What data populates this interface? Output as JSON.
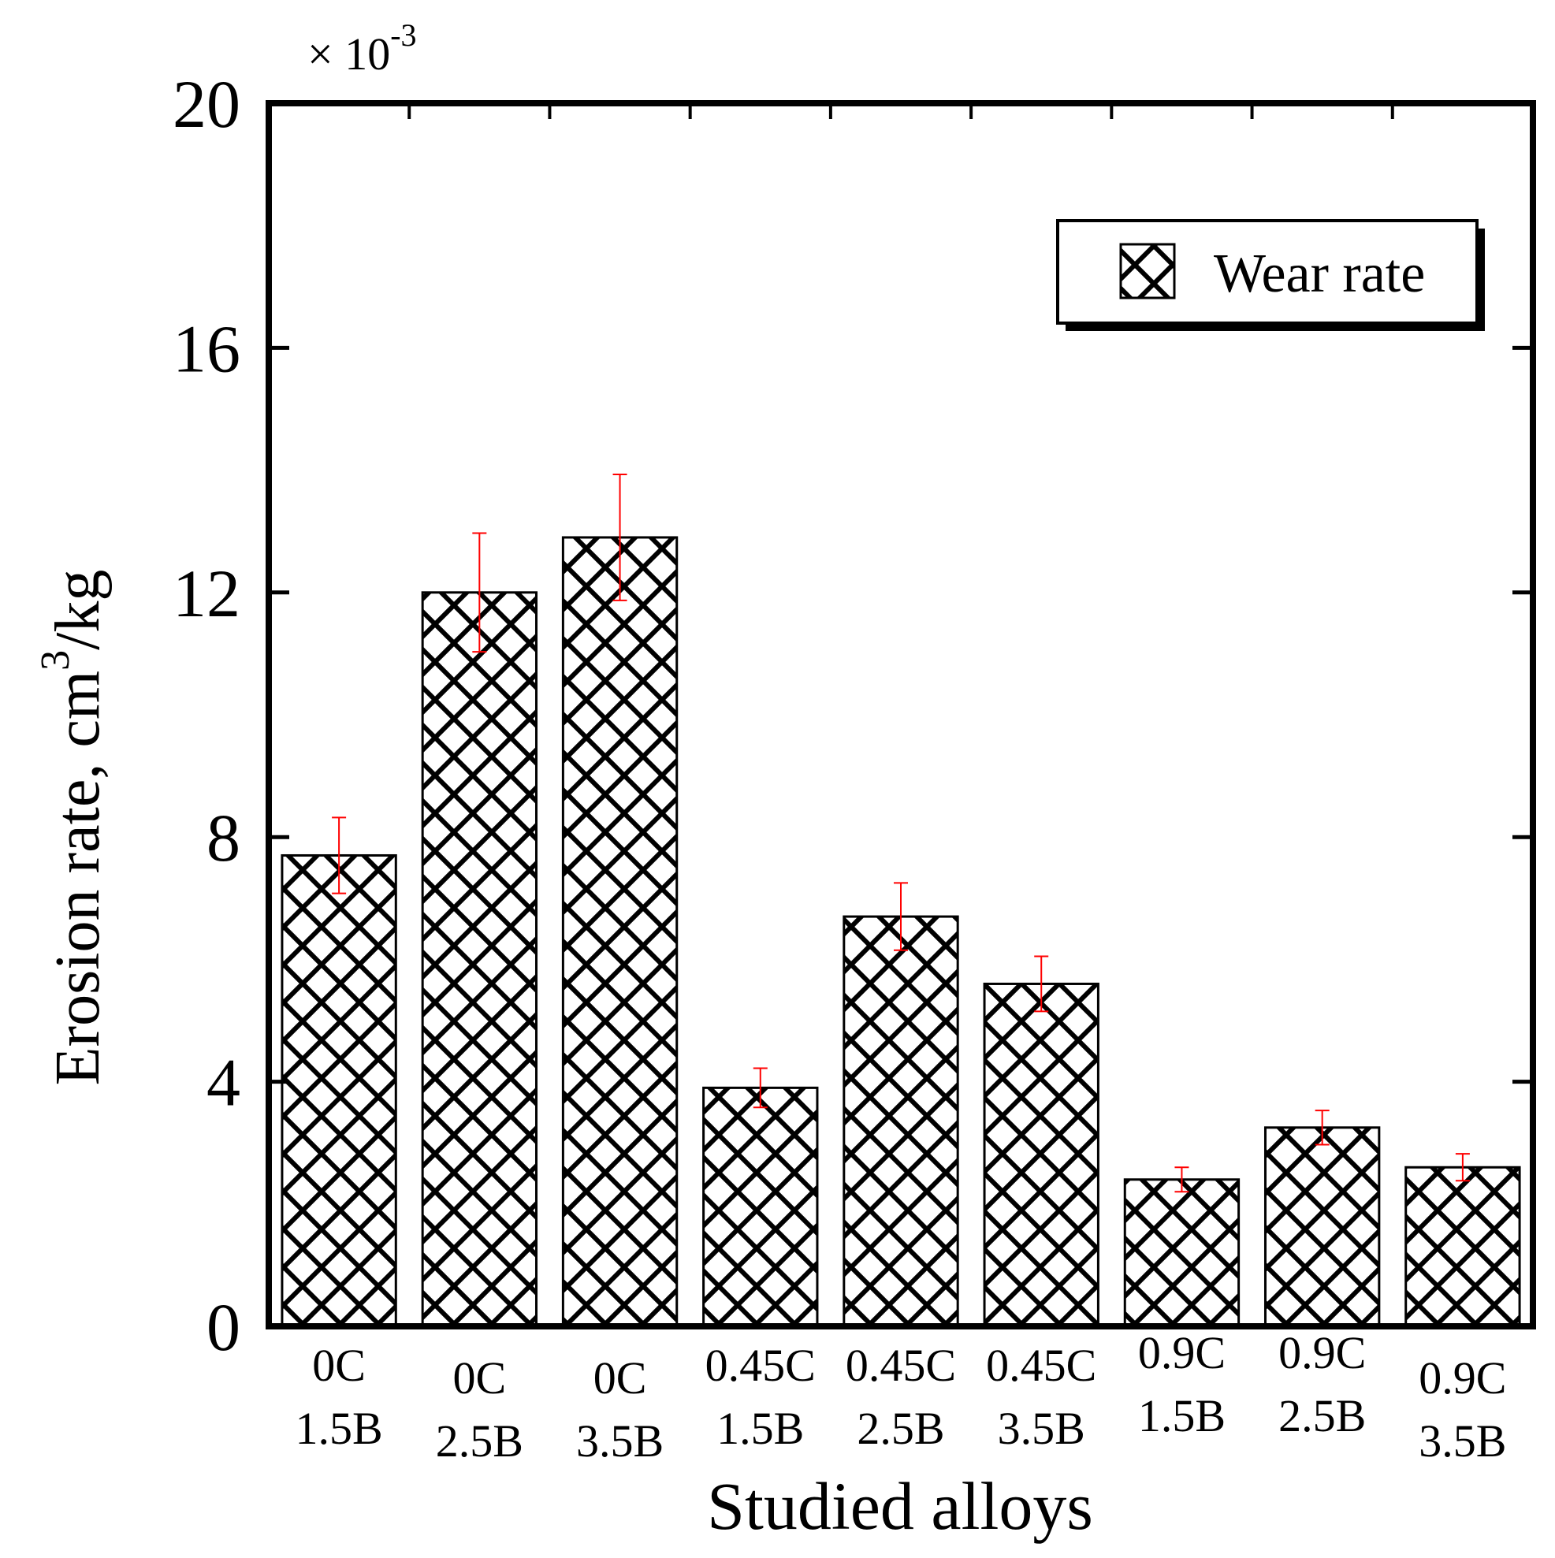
{
  "chart_data": {
    "type": "bar",
    "title": "",
    "xlabel": "Studied alloys",
    "ylabel_main": "Erosion rate, cm",
    "ylabel_sup": "3",
    "ylabel_end": "/kg",
    "scale_prefix": "× 10",
    "scale_exp": "-3",
    "ylim": [
      0,
      20
    ],
    "yticks": [
      0,
      4,
      8,
      12,
      16,
      20
    ],
    "ytick_labels": [
      "0",
      "4",
      "8",
      "12",
      "16",
      "20"
    ],
    "categories": [
      {
        "line1": "0C",
        "line2": "1.5B"
      },
      {
        "line1": "0C",
        "line2": "2.5B"
      },
      {
        "line1": "0C",
        "line2": "3.5B"
      },
      {
        "line1": "0.45C",
        "line2": "1.5B"
      },
      {
        "line1": "0.45C",
        "line2": "2.5B"
      },
      {
        "line1": "0.45C",
        "line2": "3.5B"
      },
      {
        "line1": "0.9C",
        "line2": "1.5B"
      },
      {
        "line1": "0.9C",
        "line2": "2.5B"
      },
      {
        "line1": "0.9C",
        "line2": "3.5B"
      }
    ],
    "series": [
      {
        "name": "Wear rate",
        "values": [
          7.7,
          12.0,
          12.9,
          3.9,
          6.7,
          5.6,
          2.4,
          3.25,
          2.6
        ],
        "error": [
          0.62,
          0.97,
          1.03,
          0.32,
          0.55,
          0.45,
          0.2,
          0.28,
          0.22
        ]
      }
    ],
    "legend": {
      "position": "top-right",
      "label": "Wear rate"
    },
    "grid": false,
    "colors": {
      "bar_hatch": "#000000",
      "bar_fill": "#ffffff",
      "error_bar": "#ff0000",
      "axis": "#000000"
    }
  }
}
